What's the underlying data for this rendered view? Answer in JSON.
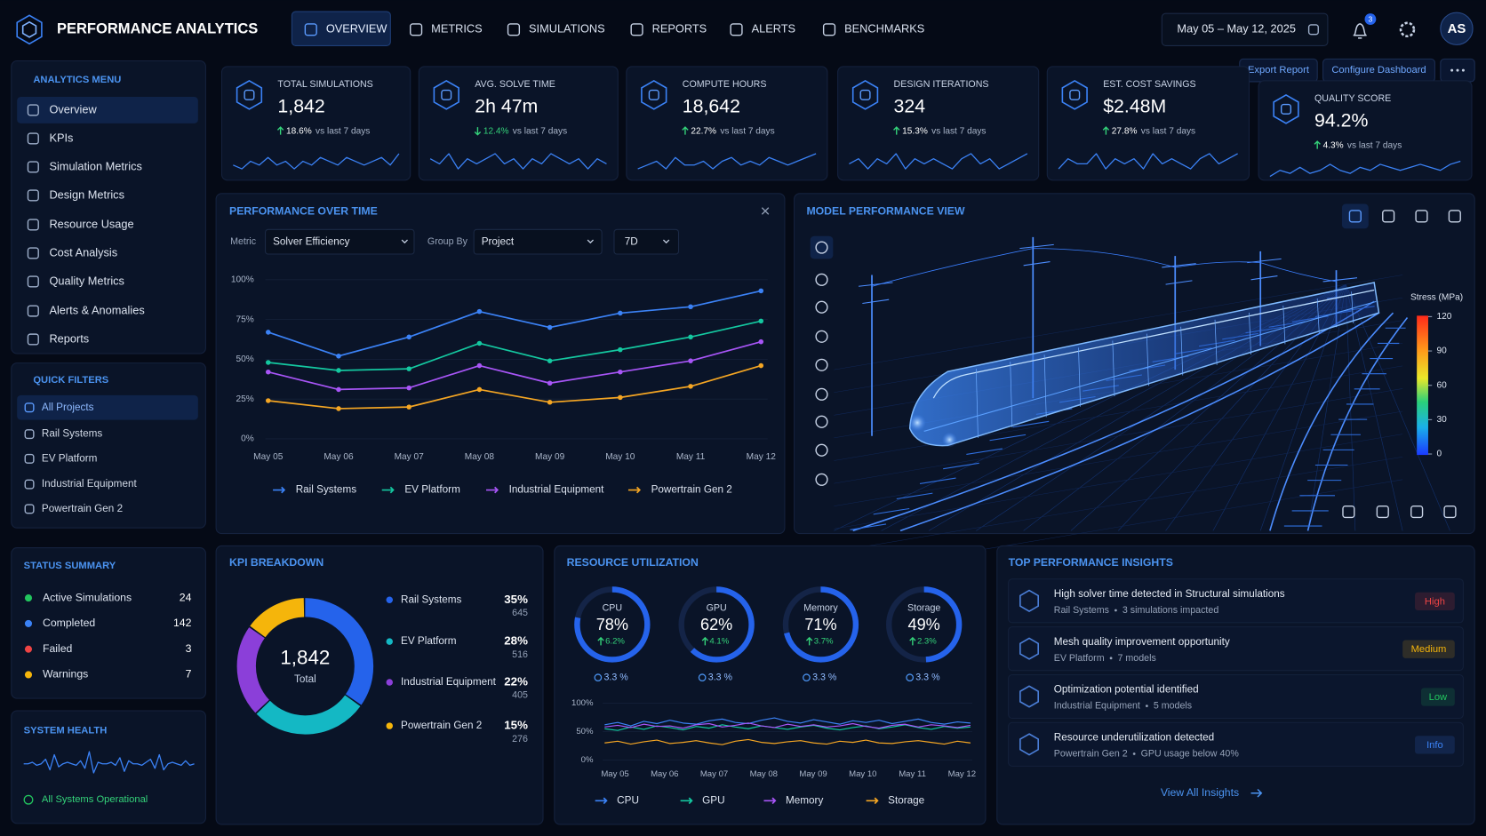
{
  "header": {
    "brand": "PERFORMANCE ANALYTICS",
    "nav": [
      "OVERVIEW",
      "METRICS",
      "SIMULATIONS",
      "REPORTS",
      "ALERTS",
      "BENCHMARKS"
    ],
    "date_range": "May 05 – May 12, 2025",
    "notifications": "3",
    "user": "AS"
  },
  "actions": [
    "Export Report",
    "Configure Dashboard"
  ],
  "sidebar": {
    "menu_title": "ANALYTICS MENU",
    "menu": [
      "Overview",
      "KPIs",
      "Simulation Metrics",
      "Design Metrics",
      "Resource Usage",
      "Cost Analysis",
      "Quality Metrics",
      "Alerts & Anomalies",
      "Reports"
    ],
    "filters_title": "QUICK FILTERS",
    "filters": [
      "All Projects",
      "Rail Systems",
      "EV Platform",
      "Industrial Equipment",
      "Powertrain Gen 2"
    ]
  },
  "status_summary": {
    "title": "STATUS SUMMARY",
    "items": [
      {
        "label": "Active Simulations",
        "value": 24,
        "color": "#22c55e"
      },
      {
        "label": "Completed",
        "value": 142,
        "color": "#3b82f6"
      },
      {
        "label": "Failed",
        "value": 3,
        "color": "#ef4444"
      },
      {
        "label": "Warnings",
        "value": 7,
        "color": "#f5b50b"
      }
    ]
  },
  "system_health": {
    "title": "SYSTEM HEALTH",
    "status": "All Systems Operational",
    "trace": [
      0,
      0,
      1,
      -1,
      0,
      3,
      -4,
      6,
      -2,
      0,
      1,
      0,
      -1,
      2,
      -3,
      8,
      -6,
      1,
      0,
      0,
      1,
      -1,
      4,
      -5,
      2,
      0,
      0,
      -1,
      1,
      3,
      -3,
      6,
      -4,
      0,
      1,
      0,
      -1,
      2,
      -1,
      0
    ]
  },
  "kpi_note": "vs last 7 days",
  "kpis": [
    {
      "label": "TOTAL SIMULATIONS",
      "value": "1,842",
      "change": "18.6%",
      "direction": "up",
      "trend": [
        5,
        4,
        6,
        5,
        7,
        5,
        6,
        4,
        6,
        5,
        7,
        6,
        5,
        7,
        6,
        5,
        6,
        7,
        5,
        8
      ]
    },
    {
      "label": "AVG. SOLVE TIME",
      "value": "2h 47m",
      "change": "12.4%",
      "direction": "down",
      "trend": [
        6,
        5,
        7,
        4,
        6,
        5,
        6,
        7,
        5,
        6,
        4,
        6,
        5,
        7,
        6,
        5,
        6,
        4,
        6,
        5
      ]
    },
    {
      "label": "COMPUTE HOURS",
      "value": "18,642",
      "change": "22.7%",
      "direction": "up",
      "trend": [
        4,
        5,
        6,
        4,
        7,
        5,
        5,
        6,
        4,
        6,
        7,
        5,
        6,
        5,
        7,
        6,
        5,
        6,
        7,
        8
      ]
    },
    {
      "label": "DESIGN ITERATIONS",
      "value": "324",
      "change": "15.3%",
      "direction": "up",
      "trend": [
        5,
        6,
        4,
        6,
        5,
        7,
        4,
        6,
        5,
        6,
        5,
        4,
        6,
        7,
        5,
        6,
        4,
        5,
        6,
        7
      ]
    },
    {
      "label": "EST. COST SAVINGS",
      "value": "$2.48M",
      "change": "27.8%",
      "direction": "up",
      "trend": [
        4,
        6,
        5,
        5,
        7,
        4,
        6,
        5,
        6,
        4,
        7,
        5,
        6,
        5,
        4,
        6,
        7,
        5,
        6,
        7
      ]
    },
    {
      "label": "QUALITY SCORE",
      "value": "94.2%",
      "change": "4.3%",
      "direction": "up",
      "trend": [
        3,
        5,
        4,
        6,
        4,
        5,
        7,
        5,
        4,
        6,
        5,
        7,
        6,
        5,
        6,
        7,
        6,
        5,
        7,
        8
      ]
    }
  ],
  "performance": {
    "title": "PERFORMANCE OVER TIME",
    "metric_label": "Metric",
    "metric": "Solver Efficiency",
    "group_label": "Group By",
    "group": "Project",
    "range": "7D",
    "categories": [
      "May 05",
      "May 06",
      "May 07",
      "May 08",
      "May 09",
      "May 10",
      "May 11",
      "May 12"
    ],
    "ylim": [
      0,
      100
    ],
    "yticks": [
      {
        "value": 0,
        "label": "0%"
      },
      {
        "value": 25,
        "label": "25%"
      },
      {
        "value": 50,
        "label": "50%"
      },
      {
        "value": 75,
        "label": "75%"
      },
      {
        "value": 100,
        "label": "100%"
      }
    ],
    "series": [
      {
        "name": "Rail Systems",
        "color": "#3b82f6",
        "values": [
          67,
          52,
          64,
          80,
          70,
          79,
          83,
          93
        ]
      },
      {
        "name": "EV Platform",
        "color": "#14c8a0",
        "values": [
          48,
          43,
          44,
          60,
          49,
          56,
          64,
          74
        ]
      },
      {
        "name": "Industrial Equipment",
        "color": "#a855f7",
        "values": [
          42,
          31,
          32,
          46,
          35,
          42,
          49,
          61
        ]
      },
      {
        "name": "Powertrain Gen 2",
        "color": "#f5a623",
        "values": [
          24,
          19,
          20,
          31,
          23,
          26,
          33,
          46
        ]
      }
    ]
  },
  "model_view": {
    "title": "MODEL PERFORMANCE VIEW",
    "legend_title": "Stress (MPa)",
    "lim": [
      0,
      120
    ],
    "ticks": [
      120,
      90,
      60,
      30,
      0
    ]
  },
  "kpi_breakdown": {
    "title": "KPI BREAKDOWN",
    "total": "1,842",
    "total_label": "Total",
    "slices": [
      {
        "name": "Rail Systems",
        "value": 35,
        "label": "35%",
        "count": 645,
        "color": "#2563eb"
      },
      {
        "name": "EV Platform",
        "value": 28,
        "label": "28%",
        "count": 516,
        "color": "#14b8c4"
      },
      {
        "name": "Industrial Equipment",
        "value": 22,
        "label": "22%",
        "count": 405,
        "color": "#8b3fd9"
      },
      {
        "name": "Powertrain Gen 2",
        "value": 15,
        "label": "15%",
        "count": 276,
        "color": "#f5b50b"
      }
    ]
  },
  "resources": {
    "title": "RESOURCE UTILIZATION",
    "gauges": [
      {
        "name": "CPU",
        "value": 78,
        "label": "78%",
        "change": "6.2%",
        "baseline": "3.3 %"
      },
      {
        "name": "GPU",
        "value": 62,
        "label": "62%",
        "change": "4.1%",
        "baseline": "3.3 %"
      },
      {
        "name": "Memory",
        "value": 71,
        "label": "71%",
        "change": "3.7%",
        "baseline": "3.3 %"
      },
      {
        "name": "Storage",
        "value": 49,
        "label": "49%",
        "change": "2.3%",
        "baseline": "3.3 %"
      }
    ],
    "chart": {
      "categories": [
        "May 05",
        "May 06",
        "May 07",
        "May 08",
        "May 09",
        "May 10",
        "May 11",
        "May 12"
      ],
      "ylim": [
        0,
        100
      ],
      "yticks": [
        {
          "value": 0,
          "label": "0%"
        },
        {
          "value": 50,
          "label": "50%"
        },
        {
          "value": 100,
          "label": "100%"
        }
      ],
      "series": [
        {
          "name": "CPU",
          "color": "#3b82f6",
          "values": [
            62,
            66,
            60,
            68,
            64,
            70,
            65,
            63,
            69,
            72,
            66,
            64,
            70,
            74,
            68,
            65,
            71,
            67,
            63,
            69,
            66,
            70,
            64,
            68,
            72,
            66,
            63,
            67,
            65
          ]
        },
        {
          "name": "GPU",
          "color": "#14c8a0",
          "values": [
            55,
            52,
            58,
            54,
            60,
            57,
            53,
            59,
            56,
            62,
            58,
            55,
            60,
            57,
            54,
            58,
            61,
            56,
            53,
            57,
            60,
            55,
            58,
            62,
            57,
            54,
            59,
            56,
            58
          ]
        },
        {
          "name": "Memory",
          "color": "#a855f7",
          "values": [
            58,
            61,
            57,
            63,
            59,
            60,
            56,
            62,
            64,
            58,
            61,
            65,
            60,
            57,
            63,
            59,
            62,
            58,
            60,
            64,
            59,
            56,
            61,
            63,
            58,
            62,
            60,
            57,
            61
          ]
        },
        {
          "name": "Storage",
          "color": "#f5a623",
          "values": [
            30,
            33,
            28,
            32,
            35,
            29,
            31,
            34,
            30,
            27,
            33,
            36,
            31,
            29,
            32,
            34,
            30,
            28,
            33,
            31,
            35,
            30,
            29,
            32,
            34,
            31,
            28,
            33,
            30
          ]
        }
      ]
    }
  },
  "insights": {
    "title": "TOP PERFORMANCE INSIGHTS",
    "link": "View All Insights",
    "items": [
      {
        "title": "High solver time detected in Structural simulations",
        "project": "Rail Systems",
        "detail": "3 simulations impacted",
        "level": "High",
        "color": "#ef4444"
      },
      {
        "title": "Mesh quality improvement opportunity",
        "project": "EV Platform",
        "detail": "7 models",
        "level": "Medium",
        "color": "#f5b50b"
      },
      {
        "title": "Optimization potential identified",
        "project": "Industrial Equipment",
        "detail": "5 models",
        "level": "Low",
        "color": "#22c55e"
      },
      {
        "title": "Resource underutilization detected",
        "project": "Powertrain Gen 2",
        "detail": "GPU usage below 40%",
        "level": "Info",
        "color": "#3b82f6"
      }
    ]
  }
}
